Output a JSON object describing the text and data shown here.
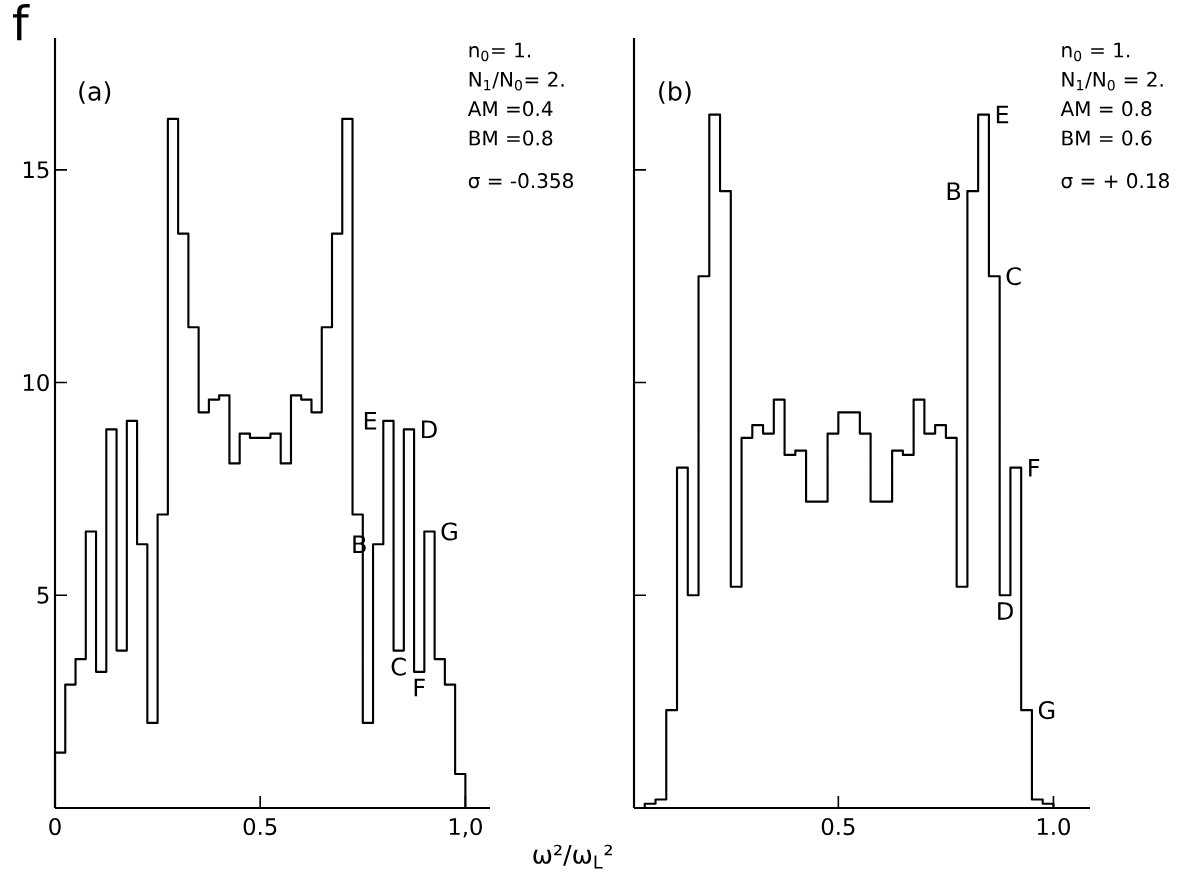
{
  "chart_data": [
    {
      "type": "histogram",
      "title": "f",
      "xlabel": "ω²/ω$_{L}$²",
      "color": "#000000",
      "bins": [
        0,
        0.025,
        0.05,
        0.075,
        0.1,
        0.125,
        0.15,
        0.175,
        0.2,
        0.225,
        0.25,
        0.275,
        0.3,
        0.325,
        0.35,
        0.375,
        0.4,
        0.425,
        0.45,
        0.475,
        0.5,
        0.525,
        0.55,
        0.575,
        0.6,
        0.625,
        0.65,
        0.675,
        0.7,
        0.725,
        0.75,
        0.775,
        0.8,
        0.825,
        0.85,
        0.875,
        0.9,
        0.925,
        0.95,
        0.975,
        1.0
      ],
      "values": [
        1.3,
        2.9,
        3.5,
        6.5,
        3.2,
        8.9,
        3.7,
        9.1,
        6.2,
        2.0,
        6.9,
        16.2,
        13.5,
        11.3,
        9.3,
        9.6,
        9.7,
        8.1,
        8.8,
        8.7,
        8.7,
        8.8,
        8.1,
        9.7,
        9.6,
        9.3,
        11.3,
        13.5,
        16.2,
        6.9,
        2.0,
        6.2,
        9.1,
        3.7,
        8.9,
        3.2,
        6.5,
        3.5,
        2.9,
        0.8
      ],
      "xlim": [
        0,
        1.06
      ],
      "ylim": [
        0,
        18.1
      ],
      "xticks": [
        0,
        0.5,
        {
          "value": 1.0,
          "label": "1,0"
        }
      ],
      "yticks": [
        5,
        10,
        15
      ],
      "annotations": [
        "(a)",
        "n$_{0}$= 1.",
        "N$_{1}$/N$_{0}$= 2.",
        "AM =0.4",
        "BM =0.8",
        "σ = -0.358",
        {
          "text": "B",
          "x": 0.775,
          "y": 6.2
        },
        {
          "text": "E",
          "x": 0.8,
          "y": 9.1
        },
        {
          "text": "C",
          "x": 0.8375,
          "y": 3.7
        },
        {
          "text": "D",
          "x": 0.875,
          "y": 8.9
        },
        {
          "text": "F",
          "x": 0.8875,
          "y": 3.2
        },
        {
          "text": "G",
          "x": 0.925,
          "y": 6.5
        }
      ]
    },
    {
      "type": "histogram",
      "color": "#000000",
      "bins": [
        0.05,
        0.075,
        0.1,
        0.125,
        0.15,
        0.175,
        0.2,
        0.225,
        0.25,
        0.275,
        0.3,
        0.325,
        0.35,
        0.375,
        0.4,
        0.425,
        0.45,
        0.475,
        0.5,
        0.525,
        0.55,
        0.575,
        0.6,
        0.625,
        0.65,
        0.675,
        0.7,
        0.725,
        0.75,
        0.775,
        0.8,
        0.825,
        0.85,
        0.875,
        0.9,
        0.925,
        0.95,
        0.975,
        1.0
      ],
      "values": [
        0.1,
        0.2,
        2.3,
        8.0,
        5.0,
        12.5,
        16.3,
        14.5,
        5.2,
        8.7,
        9.0,
        8.8,
        9.6,
        8.3,
        8.4,
        7.2,
        7.2,
        8.8,
        9.3,
        9.3,
        8.8,
        7.2,
        7.2,
        8.4,
        8.3,
        9.6,
        8.8,
        9.0,
        8.7,
        5.2,
        14.5,
        16.3,
        12.5,
        5.0,
        8.0,
        2.3,
        0.2,
        0.1
      ],
      "xlim": [
        0.025,
        1.085
      ],
      "ylim": [
        0,
        18.1
      ],
      "xticks": [
        0.5,
        {
          "value": 1.0,
          "label": "1.0"
        }
      ],
      "yticks": [
        {
          "value": 5,
          "label": null
        },
        {
          "value": 10,
          "label": null
        },
        {
          "value": 15,
          "label": null
        }
      ],
      "tick_labels": "x",
      "annotations": [
        "(b)",
        "n$_{0}$ = 1.",
        "N$_{1}$/N$_{0}$ = 2.",
        "AM = 0.8",
        "BM = 0.6",
        "σ = + 0.18",
        {
          "text": "B",
          "x": 0.8,
          "y": 14.5
        },
        {
          "text": "E",
          "x": 0.85,
          "y": 16.3
        },
        {
          "text": "C",
          "x": 0.875,
          "y": 12.5
        },
        {
          "text": "D",
          "x": 0.8875,
          "y": 5.0
        },
        {
          "text": "F",
          "x": 0.925,
          "y": 8.0
        },
        {
          "text": "G",
          "x": 0.95,
          "y": 2.3
        }
      ]
    }
  ]
}
